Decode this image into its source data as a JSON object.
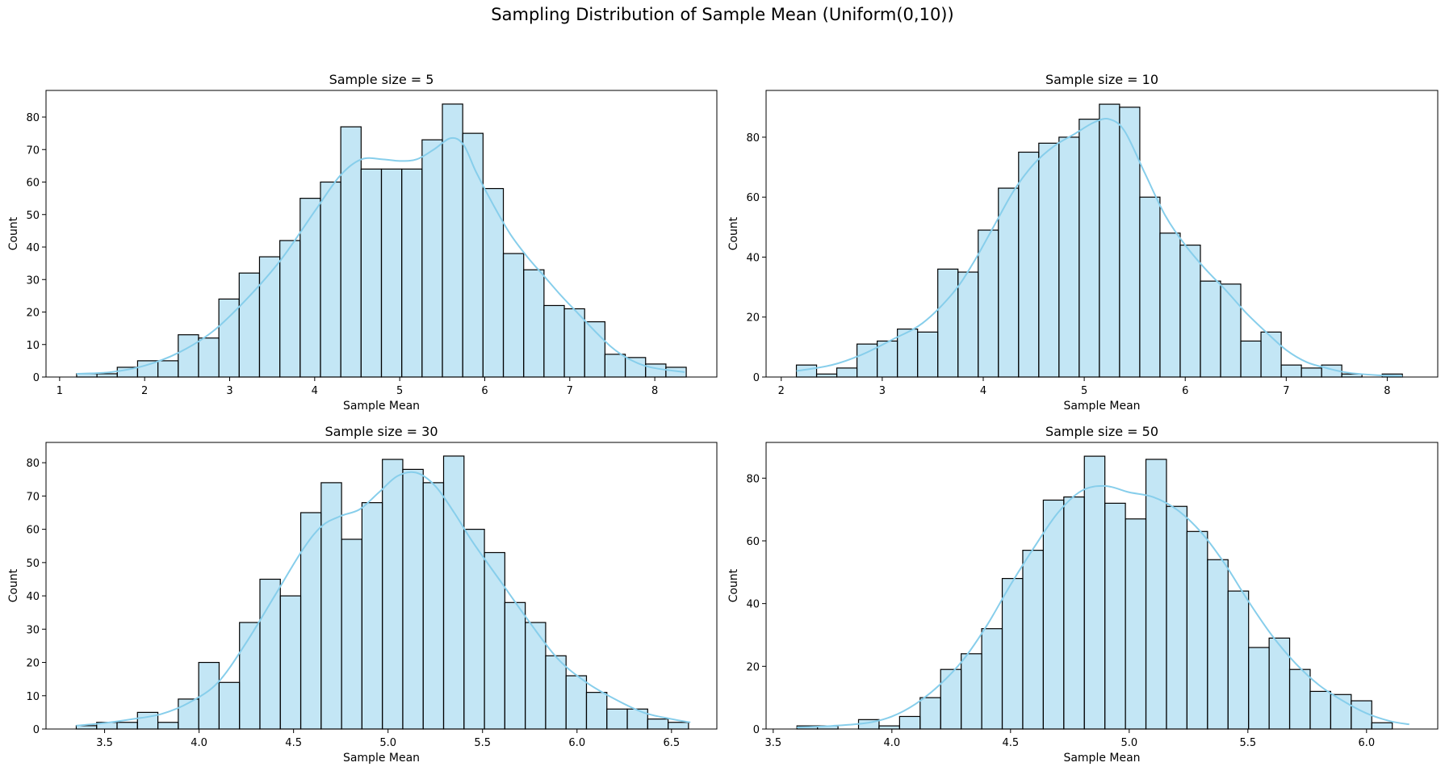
{
  "figure": {
    "title": "Sampling Distribution of Sample Mean (Uniform(0,10))"
  },
  "colors": {
    "bar_fill": "#87CEEB",
    "bar_fill_opacity": 0.5,
    "bar_edge": "#000000",
    "kde_line": "#87CEEB"
  },
  "chart_data": [
    {
      "type": "bar",
      "subtype": "histogram",
      "title": "Sample size = 5",
      "xlabel": "Sample Mean",
      "ylabel": "Count",
      "xlim": [
        0.84,
        8.73
      ],
      "ylim": [
        0,
        88.2
      ],
      "xticks": [
        1,
        2,
        3,
        4,
        5,
        6,
        7,
        8
      ],
      "yticks": [
        0,
        10,
        20,
        30,
        40,
        50,
        60,
        70,
        80
      ],
      "bin_start": 1.2,
      "bin_width": 0.239,
      "counts": [
        1,
        1,
        3,
        5,
        5,
        13,
        12,
        24,
        32,
        37,
        42,
        55,
        60,
        77,
        64,
        64,
        64,
        73,
        84,
        75,
        58,
        38,
        33,
        22,
        21,
        17,
        7,
        6,
        4,
        3
      ],
      "kde": [
        [
          1.2,
          1
        ],
        [
          1.6,
          1.5
        ],
        [
          2.0,
          3.5
        ],
        [
          2.4,
          7.5
        ],
        [
          2.8,
          14
        ],
        [
          3.2,
          24
        ],
        [
          3.6,
          36
        ],
        [
          4.0,
          51
        ],
        [
          4.3,
          62
        ],
        [
          4.55,
          67
        ],
        [
          4.8,
          67
        ],
        [
          5.0,
          66.5
        ],
        [
          5.2,
          67
        ],
        [
          5.4,
          70
        ],
        [
          5.6,
          73.5
        ],
        [
          5.75,
          71.5
        ],
        [
          5.9,
          63
        ],
        [
          6.1,
          53
        ],
        [
          6.3,
          44
        ],
        [
          6.5,
          37
        ],
        [
          6.7,
          31
        ],
        [
          6.9,
          25
        ],
        [
          7.1,
          19.5
        ],
        [
          7.3,
          14
        ],
        [
          7.5,
          9
        ],
        [
          7.7,
          5.5
        ],
        [
          7.95,
          3
        ],
        [
          8.35,
          1.5
        ]
      ]
    },
    {
      "type": "bar",
      "subtype": "histogram",
      "title": "Sample size = 10",
      "xlabel": "Sample Mean",
      "ylabel": "Count",
      "xlim": [
        1.85,
        8.5
      ],
      "ylim": [
        0,
        95.6
      ],
      "xticks": [
        2,
        3,
        4,
        5,
        6,
        7,
        8
      ],
      "yticks": [
        0,
        20,
        40,
        60,
        80
      ],
      "bin_start": 2.15,
      "bin_width": 0.2,
      "counts": [
        4,
        1,
        3,
        11,
        12,
        16,
        15,
        36,
        35,
        49,
        63,
        75,
        78,
        80,
        86,
        91,
        90,
        60,
        48,
        44,
        32,
        31,
        12,
        15,
        4,
        3,
        4,
        1,
        0,
        1
      ],
      "kde": [
        [
          2.15,
          2
        ],
        [
          2.5,
          4
        ],
        [
          2.8,
          7.5
        ],
        [
          3.1,
          12.5
        ],
        [
          3.4,
          18
        ],
        [
          3.7,
          28
        ],
        [
          3.9,
          38
        ],
        [
          4.1,
          50
        ],
        [
          4.3,
          62
        ],
        [
          4.5,
          71
        ],
        [
          4.7,
          77
        ],
        [
          4.9,
          81
        ],
        [
          5.1,
          85
        ],
        [
          5.25,
          86
        ],
        [
          5.4,
          82
        ],
        [
          5.6,
          68
        ],
        [
          5.8,
          54
        ],
        [
          6.0,
          44
        ],
        [
          6.2,
          36
        ],
        [
          6.4,
          29
        ],
        [
          6.6,
          21.5
        ],
        [
          6.8,
          15
        ],
        [
          7.0,
          9
        ],
        [
          7.2,
          5
        ],
        [
          7.4,
          3
        ],
        [
          7.6,
          1.5
        ],
        [
          7.9,
          0.6
        ],
        [
          8.15,
          0.3
        ]
      ]
    },
    {
      "type": "bar",
      "subtype": "histogram",
      "title": "Sample size = 30",
      "xlabel": "Sample Mean",
      "ylabel": "Count",
      "xlim": [
        3.19,
        6.74
      ],
      "ylim": [
        0,
        86.1
      ],
      "xticks": [
        3.5,
        4.0,
        4.5,
        5.0,
        5.5,
        6.0,
        6.5
      ],
      "xtick_labels": [
        "3.5",
        "4.0",
        "4.5",
        "5.0",
        "5.5",
        "6.0",
        "6.5"
      ],
      "yticks": [
        0,
        10,
        20,
        30,
        40,
        50,
        60,
        70,
        80
      ],
      "bin_start": 3.35,
      "bin_width": 0.108,
      "counts": [
        1,
        2,
        2,
        5,
        2,
        9,
        20,
        14,
        32,
        45,
        40,
        65,
        74,
        57,
        68,
        81,
        78,
        74,
        82,
        60,
        53,
        38,
        32,
        22,
        16,
        11,
        6,
        6,
        3,
        2
      ],
      "kde": [
        [
          3.35,
          1
        ],
        [
          3.5,
          1.8
        ],
        [
          3.65,
          3
        ],
        [
          3.8,
          4.5
        ],
        [
          3.95,
          8
        ],
        [
          4.1,
          14
        ],
        [
          4.25,
          26
        ],
        [
          4.4,
          40
        ],
        [
          4.55,
          54
        ],
        [
          4.65,
          61
        ],
        [
          4.75,
          64
        ],
        [
          4.85,
          66
        ],
        [
          4.95,
          71
        ],
        [
          5.05,
          76
        ],
        [
          5.15,
          77
        ],
        [
          5.25,
          73
        ],
        [
          5.35,
          65
        ],
        [
          5.45,
          56
        ],
        [
          5.6,
          44
        ],
        [
          5.75,
          32
        ],
        [
          5.9,
          21
        ],
        [
          6.05,
          14
        ],
        [
          6.2,
          9
        ],
        [
          6.35,
          5
        ],
        [
          6.5,
          3
        ],
        [
          6.6,
          2
        ]
      ]
    },
    {
      "type": "bar",
      "subtype": "histogram",
      "title": "Sample size = 50",
      "xlabel": "Sample Mean",
      "ylabel": "Count",
      "xlim": [
        3.47,
        6.3
      ],
      "ylim": [
        0,
        91.4
      ],
      "xticks": [
        3.5,
        4.0,
        4.5,
        5.0,
        5.5,
        6.0
      ],
      "xtick_labels": [
        "3.5",
        "4.0",
        "4.5",
        "5.0",
        "5.5",
        "6.0"
      ],
      "yticks": [
        0,
        20,
        40,
        60,
        80
      ],
      "bin_start": 3.6,
      "bin_width": 0.0865,
      "counts": [
        1,
        1,
        0,
        3,
        1,
        4,
        10,
        19,
        24,
        32,
        48,
        57,
        73,
        74,
        87,
        72,
        67,
        86,
        71,
        63,
        54,
        44,
        26,
        29,
        19,
        12,
        11,
        9,
        2
      ],
      "kde": [
        [
          3.6,
          0.5
        ],
        [
          3.75,
          1
        ],
        [
          3.9,
          2
        ],
        [
          4.0,
          4
        ],
        [
          4.1,
          8
        ],
        [
          4.2,
          14
        ],
        [
          4.3,
          22
        ],
        [
          4.4,
          33
        ],
        [
          4.5,
          46
        ],
        [
          4.6,
          58
        ],
        [
          4.7,
          69
        ],
        [
          4.8,
          76
        ],
        [
          4.9,
          77.5
        ],
        [
          5.0,
          75.5
        ],
        [
          5.1,
          74
        ],
        [
          5.2,
          70
        ],
        [
          5.3,
          63
        ],
        [
          5.4,
          53
        ],
        [
          5.5,
          41
        ],
        [
          5.6,
          30
        ],
        [
          5.7,
          21
        ],
        [
          5.8,
          14
        ],
        [
          5.9,
          9
        ],
        [
          6.0,
          5
        ],
        [
          6.1,
          2.5
        ],
        [
          6.18,
          1.5
        ]
      ]
    }
  ]
}
